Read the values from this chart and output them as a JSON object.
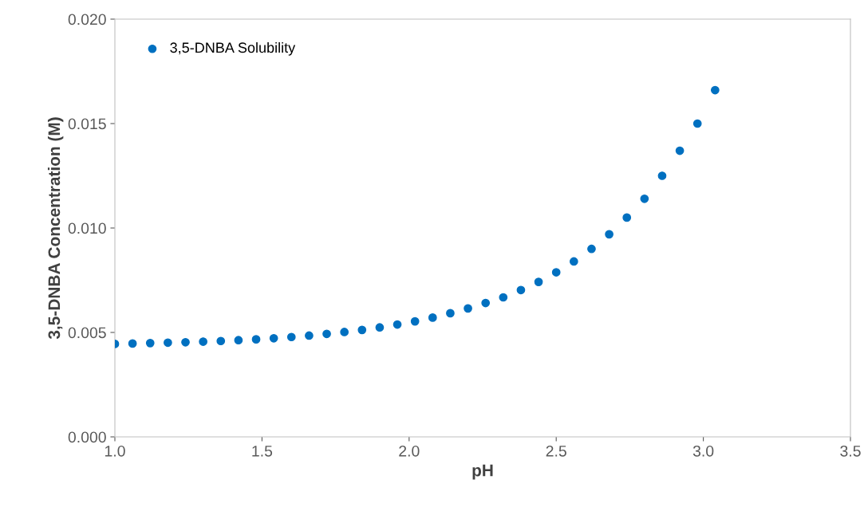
{
  "chart_data": {
    "type": "scatter",
    "xlabel": "pH",
    "ylabel": "3,5-DNBA Concentration (M)",
    "x": [
      1.0,
      1.06,
      1.12,
      1.18,
      1.24,
      1.3,
      1.36,
      1.42,
      1.48,
      1.54,
      1.6,
      1.66,
      1.72,
      1.78,
      1.84,
      1.9,
      1.96,
      2.02,
      2.08,
      2.14,
      2.2,
      2.26,
      2.32,
      2.38,
      2.44,
      2.5,
      2.56,
      2.62,
      2.68,
      2.74,
      2.8,
      2.86,
      2.92,
      2.98,
      3.04
    ],
    "series": [
      {
        "name": "3,5-DNBA Solubility",
        "color": "#0070c0",
        "values": [
          0.00445,
          0.00447,
          0.00449,
          0.00451,
          0.00453,
          0.00456,
          0.00459,
          0.00463,
          0.00467,
          0.00472,
          0.00478,
          0.00485,
          0.00493,
          0.00502,
          0.00512,
          0.00524,
          0.00538,
          0.00553,
          0.00571,
          0.00592,
          0.00615,
          0.00641,
          0.00668,
          0.00703,
          0.00742,
          0.00788,
          0.0084,
          0.009,
          0.0097,
          0.0105,
          0.0114,
          0.0125,
          0.0137,
          0.015,
          0.0166
        ]
      }
    ],
    "xlim": [
      1.0,
      3.5
    ],
    "xticks": [
      {
        "value": 1.0,
        "label": "1.0"
      },
      {
        "value": 1.5,
        "label": "1.5"
      },
      {
        "value": 2.0,
        "label": "2.0"
      },
      {
        "value": 2.5,
        "label": "2.5"
      },
      {
        "value": 3.0,
        "label": "3.0"
      },
      {
        "value": 3.5,
        "label": "3.5"
      }
    ],
    "ylim": [
      0.0,
      0.02
    ],
    "yticks": [
      {
        "value": 0.0,
        "label": "0.000"
      },
      {
        "value": 0.005,
        "label": "0.005"
      },
      {
        "value": 0.01,
        "label": "0.010"
      },
      {
        "value": 0.015,
        "label": "0.015"
      },
      {
        "value": 0.02,
        "label": "0.020"
      }
    ],
    "marker": "circle",
    "legend": "top left",
    "grid": false
  }
}
